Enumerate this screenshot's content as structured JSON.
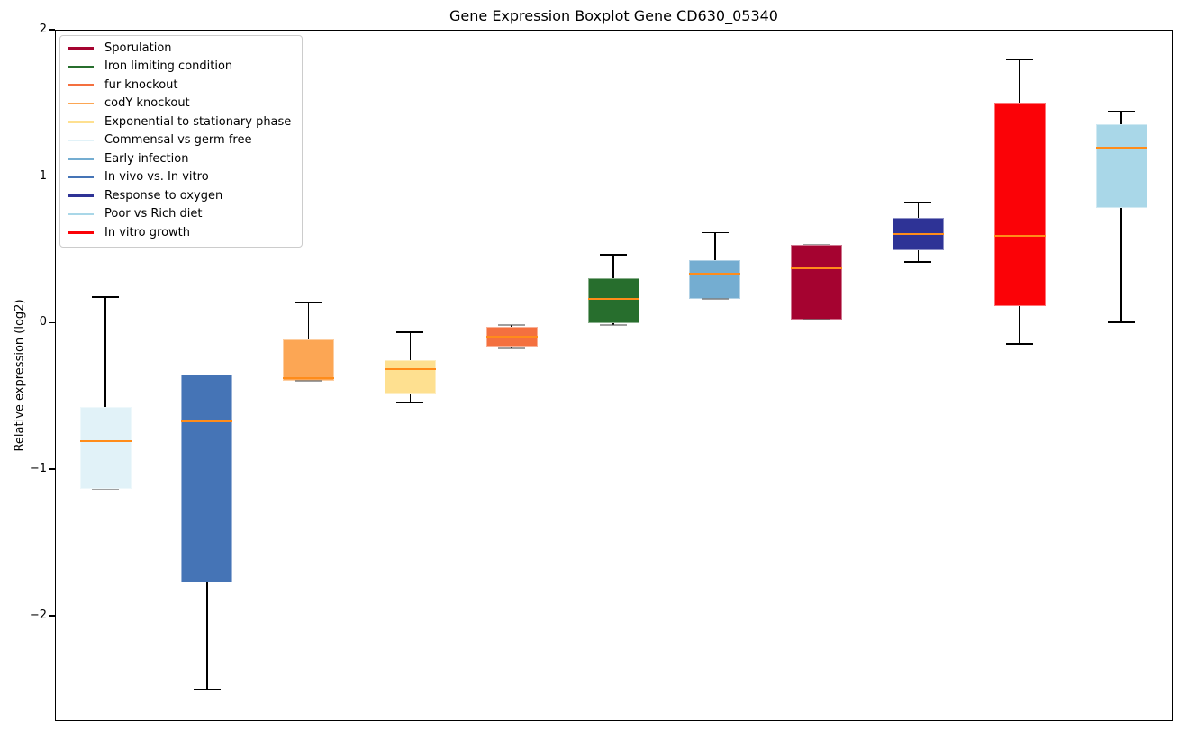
{
  "title": "Gene Expression Boxplot Gene CD630_05340",
  "ylabel": "Relative expression (log2)",
  "axes": {
    "yticks": [
      {
        "label": "2",
        "value": 2
      },
      {
        "label": "1",
        "value": 1
      },
      {
        "label": "0",
        "value": 0
      },
      {
        "label": "−1",
        "value": -1
      },
      {
        "label": "−2",
        "value": -2
      }
    ]
  },
  "legend": {
    "entries": [
      {
        "label": "Sporulation",
        "color": "#a50330"
      },
      {
        "label": "Iron limiting condition",
        "color": "#276e2d"
      },
      {
        "label": "fur knockout",
        "color": "#f4703f"
      },
      {
        "label": "codY knockout",
        "color": "#fca654"
      },
      {
        "label": "Exponential to stationary phase",
        "color": "#fee090"
      },
      {
        "label": "Commensal vs germ free",
        "color": "#e1f2f8"
      },
      {
        "label": "Early infection",
        "color": "#74add1"
      },
      {
        "label": "In vivo vs. In vitro",
        "color": "#4574b6"
      },
      {
        "label": "Response to oxygen",
        "color": "#2e3396"
      },
      {
        "label": "Poor vs Rich diet",
        "color": "#a9d7e8"
      },
      {
        "label": "In vitro growth",
        "color": "#fb0207"
      }
    ]
  },
  "chart_data": {
    "type": "boxplot",
    "title": "Gene Expression Boxplot Gene CD630_05340",
    "xlabel": "",
    "ylabel": "Relative expression (log2)",
    "ylim": [
      -2.72,
      2.0
    ],
    "grid": false,
    "legend_position": "upper-left",
    "median_color": "#ff8c1a",
    "whisker_color": "#000000",
    "boxes": [
      {
        "label": "Commensal vs germ free",
        "color": "#e1f2f8",
        "whisker_low": -1.13,
        "q1": -1.13,
        "median": -0.8,
        "q3": -0.57,
        "whisker_high": 0.18
      },
      {
        "label": "In vivo vs. In vitro",
        "color": "#4574b6",
        "whisker_low": -2.5,
        "q1": -1.77,
        "median": -0.67,
        "q3": -0.35,
        "whisker_high": -0.35
      },
      {
        "label": "codY knockout",
        "color": "#fca654",
        "whisker_low": -0.39,
        "q1": -0.39,
        "median": -0.37,
        "q3": -0.11,
        "whisker_high": 0.14
      },
      {
        "label": "Exponential to stationary phase",
        "color": "#fee090",
        "whisker_low": -0.54,
        "q1": -0.48,
        "median": -0.31,
        "q3": -0.25,
        "whisker_high": -0.06
      },
      {
        "label": "fur knockout",
        "color": "#f4703f",
        "whisker_low": -0.17,
        "q1": -0.16,
        "median": -0.09,
        "q3": -0.02,
        "whisker_high": -0.01
      },
      {
        "label": "Iron limiting condition",
        "color": "#276e2d",
        "whisker_low": -0.01,
        "q1": 0.0,
        "median": 0.17,
        "q3": 0.31,
        "whisker_high": 0.47
      },
      {
        "label": "Early infection",
        "color": "#74add1",
        "whisker_low": 0.17,
        "q1": 0.17,
        "median": 0.34,
        "q3": 0.43,
        "whisker_high": 0.62
      },
      {
        "label": "Sporulation",
        "color": "#a50330",
        "whisker_low": 0.03,
        "q1": 0.03,
        "median": 0.38,
        "q3": 0.54,
        "whisker_high": 0.54
      },
      {
        "label": "Response to oxygen",
        "color": "#2e3396",
        "whisker_low": 0.42,
        "q1": 0.5,
        "median": 0.61,
        "q3": 0.72,
        "whisker_high": 0.83
      },
      {
        "label": "In vitro growth",
        "color": "#fb0207",
        "whisker_low": -0.14,
        "q1": 0.12,
        "median": 0.6,
        "q3": 1.51,
        "whisker_high": 1.8
      },
      {
        "label": "Poor vs Rich diet",
        "color": "#a9d7e8",
        "whisker_low": 0.01,
        "q1": 0.79,
        "median": 1.2,
        "q3": 1.36,
        "whisker_high": 1.45
      }
    ]
  }
}
